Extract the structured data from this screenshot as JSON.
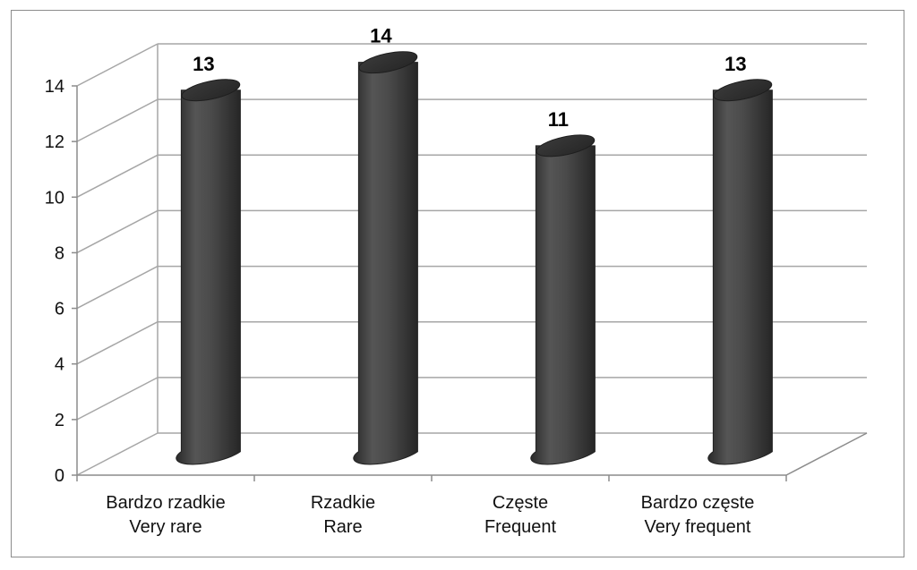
{
  "chart_data": {
    "type": "bar",
    "style": "3d-cylinder",
    "categories": [
      [
        "Bardzo rzadkie",
        "Very rare"
      ],
      [
        "Rzadkie",
        "Rare"
      ],
      [
        "Częste",
        "Frequent"
      ],
      [
        "Bardzo częste",
        "Very frequent"
      ]
    ],
    "values": [
      13,
      14,
      11,
      13
    ],
    "data_labels": [
      "13",
      "14",
      "11",
      "13"
    ],
    "ylim": [
      0,
      14
    ],
    "yticks": [
      "0",
      "2",
      "4",
      "6",
      "8",
      "10",
      "12",
      "14"
    ],
    "grid": true,
    "legend": "none",
    "colors": {
      "bar": "#4a4a4a",
      "grid": "#a6a6a6",
      "axis": "#8c8c8c"
    }
  }
}
